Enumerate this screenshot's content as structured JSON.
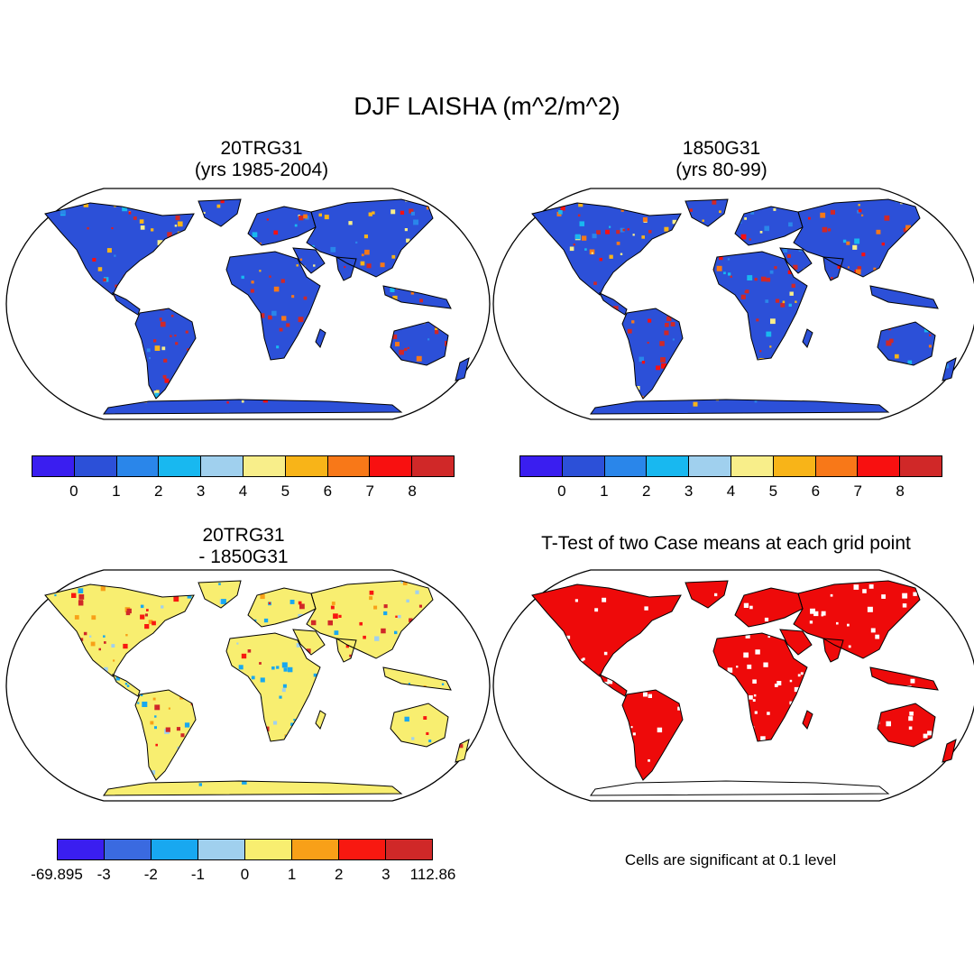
{
  "figure": {
    "title": "DJF LAISHA (m^2/m^2)"
  },
  "panels": [
    {
      "name": "panel-top-left",
      "title_line1": "20TRG31",
      "title_line2": "(yrs 1985-2004)"
    },
    {
      "name": "panel-top-right",
      "title_line1": "1850G31",
      "title_line2": "(yrs 80-99)"
    },
    {
      "name": "panel-bottom-left",
      "title_line1": "20TRG31",
      "title_line2": "- 1850G31"
    },
    {
      "name": "panel-bottom-right",
      "title_line1": "T-Test of two Case means at each grid point",
      "title_line2": ""
    }
  ],
  "colorbars": {
    "absolute": {
      "colors": [
        "#3a1ef0",
        "#2c50d8",
        "#2a86ea",
        "#18b8f0",
        "#a0d0ee",
        "#f8ee8a",
        "#f8b418",
        "#f87818",
        "#f81010",
        "#d02828"
      ],
      "labels": [
        "0",
        "1",
        "2",
        "3",
        "4",
        "5",
        "6",
        "7",
        "8"
      ]
    },
    "difference": {
      "colors": [
        "#3a1ef0",
        "#3a6ae0",
        "#18a8f0",
        "#a0d0ee",
        "#f8ee70",
        "#f8a018",
        "#f81810",
        "#d02828"
      ],
      "labels": [
        "-69.895",
        "-3",
        "-2",
        "-1",
        "0",
        "1",
        "2",
        "3",
        "112.86"
      ]
    },
    "ttest_fill": "#ee0a0a"
  },
  "note": "Cells are significant at 0.1 level"
}
